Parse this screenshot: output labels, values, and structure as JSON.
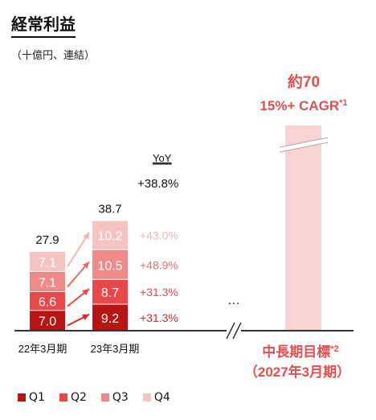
{
  "title": "経常利益",
  "unit_note": "（十億円、連結）",
  "chart_data": {
    "type": "bar",
    "stacked": true,
    "categories": [
      "22年3月期",
      "23年3月期"
    ],
    "series": [
      {
        "name": "Q1",
        "values": [
          7.0,
          9.2
        ],
        "color": "#b81414"
      },
      {
        "name": "Q2",
        "values": [
          6.6,
          8.7
        ],
        "color": "#e84848"
      },
      {
        "name": "Q3",
        "values": [
          7.1,
          10.5
        ],
        "color": "#ef8a8a"
      },
      {
        "name": "Q4",
        "values": [
          7.1,
          10.2
        ],
        "color": "#f6c3c3"
      }
    ],
    "value_labels": [
      [
        "7.0",
        "6.6",
        "7.1",
        "7.1"
      ],
      [
        "9.2",
        "8.7",
        "10.5",
        "10.2"
      ]
    ],
    "totals": [
      27.9,
      38.7
    ],
    "total_labels": [
      "27.9",
      "38.7"
    ],
    "yoy_header": "YoY",
    "yoy_total": "+38.8%",
    "yoy": [
      {
        "label": "+31.3%",
        "color": "#d42a2a"
      },
      {
        "label": "+31.3%",
        "color": "#e84848"
      },
      {
        "label": "+48.9%",
        "color": "#e86a6a"
      },
      {
        "label": "+43.0%",
        "color": "#f4b4b4"
      }
    ],
    "ellipsis": "…",
    "target": {
      "value": 70,
      "value_label": "約70",
      "cagr_label": "15%+ CAGR",
      "cagr_note": "*1",
      "color": "#fad4d4",
      "category_line1": "中長期目標",
      "category_note": "*2",
      "category_line2": "（2027年3月期）",
      "text_color": "#e05050"
    }
  }
}
